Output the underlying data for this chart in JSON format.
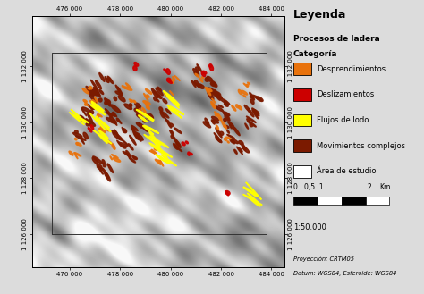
{
  "legend_title": "Leyenda",
  "legend_subtitle1": "Procesos de ladera",
  "legend_subtitle2": "Categoría",
  "legend_items": [
    {
      "label": "Desprendimientos",
      "color": "#E8720C"
    },
    {
      "label": "Deslizamientos",
      "color": "#CC0000"
    },
    {
      "label": "Flujos de lodo",
      "color": "#FFFF00"
    },
    {
      "label": "Movimientos complejos",
      "color": "#7B1A00"
    },
    {
      "label": "Área de estudio",
      "color": "#FFFFFF"
    }
  ],
  "scale_text": "1:50.000",
  "projection_text": "Proyección: CRTM05",
  "datum_text": "Datum: WGS84, Esferoide: WGS84",
  "xmin": 474500,
  "xmax": 484500,
  "ymin": 1124800,
  "ymax": 1133800,
  "xticks": [
    476000,
    478000,
    480000,
    482000,
    484000
  ],
  "yticks": [
    1126000,
    1128000,
    1130000,
    1132000
  ],
  "study_area_x": [
    475300,
    483800,
    483800,
    475300,
    475300
  ],
  "study_area_y": [
    1126000,
    1126000,
    1132500,
    1132500,
    1126000
  ],
  "figure_bg": "#DCDCDC"
}
